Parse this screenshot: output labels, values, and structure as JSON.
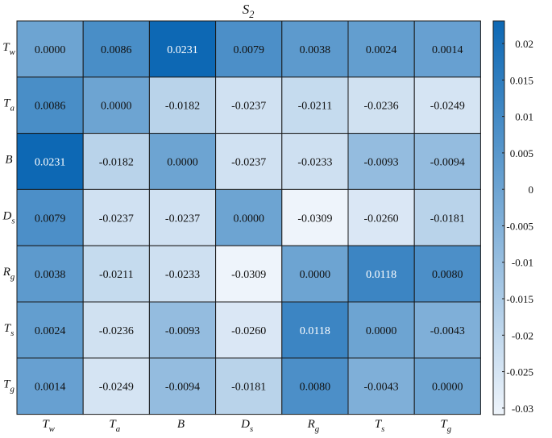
{
  "chart_data": {
    "type": "heatmap",
    "title": {
      "base": "S",
      "sub": "2"
    },
    "rows": [
      {
        "base": "T",
        "sub": "w"
      },
      {
        "base": "T",
        "sub": "a"
      },
      {
        "base": "B",
        "sub": ""
      },
      {
        "base": "D",
        "sub": "s"
      },
      {
        "base": "R",
        "sub": "g"
      },
      {
        "base": "T",
        "sub": "s"
      },
      {
        "base": "T",
        "sub": "g"
      }
    ],
    "cols": [
      {
        "base": "T",
        "sub": "w"
      },
      {
        "base": "T",
        "sub": "a"
      },
      {
        "base": "B",
        "sub": ""
      },
      {
        "base": "D",
        "sub": "s"
      },
      {
        "base": "R",
        "sub": "g"
      },
      {
        "base": "T",
        "sub": "s"
      },
      {
        "base": "T",
        "sub": "g"
      }
    ],
    "values": [
      [
        0.0,
        0.0086,
        0.0231,
        0.0079,
        0.0038,
        0.0024,
        0.0014
      ],
      [
        0.0086,
        0.0,
        -0.0182,
        -0.0237,
        -0.0211,
        -0.0236,
        -0.0249
      ],
      [
        0.0231,
        -0.0182,
        0.0,
        -0.0237,
        -0.0233,
        -0.0093,
        -0.0094
      ],
      [
        0.0079,
        -0.0237,
        -0.0237,
        0.0,
        -0.0309,
        -0.026,
        -0.0181
      ],
      [
        0.0038,
        -0.0211,
        -0.0233,
        -0.0309,
        0.0,
        0.0118,
        0.008
      ],
      [
        0.0024,
        -0.0236,
        -0.0093,
        -0.026,
        0.0118,
        0.0,
        -0.0043
      ],
      [
        0.0014,
        -0.0249,
        -0.0094,
        -0.0181,
        0.008,
        -0.0043,
        0.0
      ]
    ],
    "value_labels": [
      [
        "0.0000",
        "0.0086",
        "0.0231",
        "0.0079",
        "0.0038",
        "0.0024",
        "0.0014"
      ],
      [
        "0.0086",
        "0.0000",
        "-0.0182",
        "-0.0237",
        "-0.0211",
        "-0.0236",
        "-0.0249"
      ],
      [
        "0.0231",
        "-0.0182",
        "0.0000",
        "-0.0237",
        "-0.0233",
        "-0.0093",
        "-0.0094"
      ],
      [
        "0.0079",
        "-0.0237",
        "-0.0237",
        "0.0000",
        "-0.0309",
        "-0.0260",
        "-0.0181"
      ],
      [
        "0.0038",
        "-0.0211",
        "-0.0233",
        "-0.0309",
        "0.0000",
        "0.0118",
        "0.0080"
      ],
      [
        "0.0024",
        "-0.0236",
        "-0.0093",
        "-0.0260",
        "0.0118",
        "0.0000",
        "-0.0043"
      ],
      [
        "0.0014",
        "-0.0249",
        "-0.0094",
        "-0.0181",
        "0.0080",
        "-0.0043",
        "0.0000"
      ]
    ],
    "colorbar": {
      "min": -0.0309,
      "max": 0.0231,
      "ticks": [
        0.02,
        0.015,
        0.01,
        0.005,
        0,
        -0.005,
        -0.01,
        -0.015,
        -0.02,
        -0.025,
        -0.03
      ],
      "tick_labels": [
        "0.02",
        "0.015",
        "0.01",
        "0.005",
        "0",
        "-0.005",
        "-0.01",
        "-0.015",
        "-0.02",
        "-0.025",
        "-0.03"
      ],
      "color_low": "#eef4fb",
      "color_high": "#0d68b4"
    },
    "colors": {
      "text_dark": "#111111",
      "text_light": "#ffffff",
      "cell_border": "#1a1a1a"
    }
  }
}
